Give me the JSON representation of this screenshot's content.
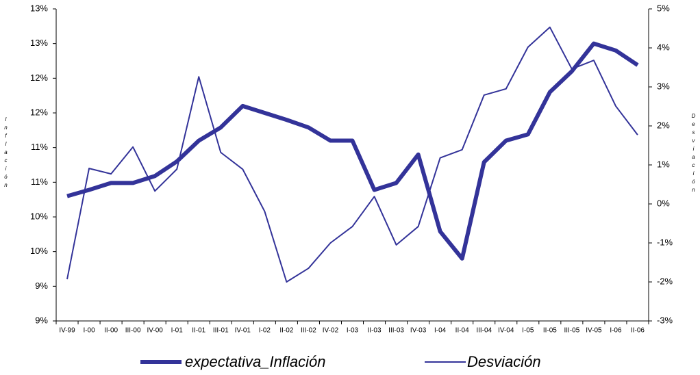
{
  "chart_data": {
    "type": "line",
    "y_label": "Inflación",
    "y2_label": "Desviación",
    "categories": [
      "IV-99",
      "I-00",
      "II-00",
      "III-00",
      "IV-00",
      "I-01",
      "II-01",
      "III-01",
      "IV-01",
      "I-02",
      "II-02",
      "III-02",
      "IV-02",
      "I-03",
      "II-03",
      "III-03",
      "IV-03",
      "I-04",
      "II-04",
      "III-04",
      "IV-04",
      "I-05",
      "II-05",
      "III-05",
      "IV-05",
      "I-06",
      "II-06"
    ],
    "series": [
      {
        "name": "expectativa_Inflación",
        "color": "#333399",
        "width": 6,
        "values": [
          10.55,
          10.64,
          10.74,
          10.74,
          10.84,
          11.05,
          11.35,
          11.54,
          11.85,
          11.75,
          11.65,
          11.54,
          11.35,
          11.35,
          10.64,
          10.74,
          11.15,
          10.04,
          9.65,
          11.04,
          11.35,
          11.44,
          12.05,
          12.35,
          12.75,
          12.65,
          12.44
        ]
      },
      {
        "name": "Desviación",
        "color": "#333399",
        "width": 2,
        "axis": "y2",
        "values": [
          -1.93,
          0.91,
          0.77,
          1.46,
          0.33,
          0.89,
          3.26,
          1.32,
          0.89,
          -0.19,
          -2.0,
          -1.65,
          -1.0,
          -0.58,
          0.19,
          -1.05,
          -0.58,
          1.18,
          1.39,
          2.79,
          2.95,
          4.02,
          4.53,
          3.46,
          3.68,
          2.51,
          1.77
        ]
      }
    ],
    "ylim": [
      8.75,
      13.25
    ],
    "yticks": [
      {
        "value": 8.75,
        "label": "9%"
      },
      {
        "value": 9.25,
        "label": "9%"
      },
      {
        "value": 9.75,
        "label": "10%"
      },
      {
        "value": 10.25,
        "label": "10%"
      },
      {
        "value": 10.75,
        "label": "11%"
      },
      {
        "value": 11.25,
        "label": "11%"
      },
      {
        "value": 11.75,
        "label": "12%"
      },
      {
        "value": 12.25,
        "label": "12%"
      },
      {
        "value": 12.75,
        "label": "13%"
      },
      {
        "value": 13.25,
        "label": "13%"
      }
    ],
    "y2lim": [
      -3,
      5
    ],
    "y2ticks": [
      {
        "value": -3,
        "label": "-3%"
      },
      {
        "value": -2,
        "label": "-2%"
      },
      {
        "value": -1,
        "label": "-1%"
      },
      {
        "value": 0,
        "label": "0%"
      },
      {
        "value": 1,
        "label": "1%"
      },
      {
        "value": 2,
        "label": "2%"
      },
      {
        "value": 3,
        "label": "3%"
      },
      {
        "value": 4,
        "label": "4%"
      },
      {
        "value": 5,
        "label": "5%"
      }
    ],
    "grid": false
  }
}
